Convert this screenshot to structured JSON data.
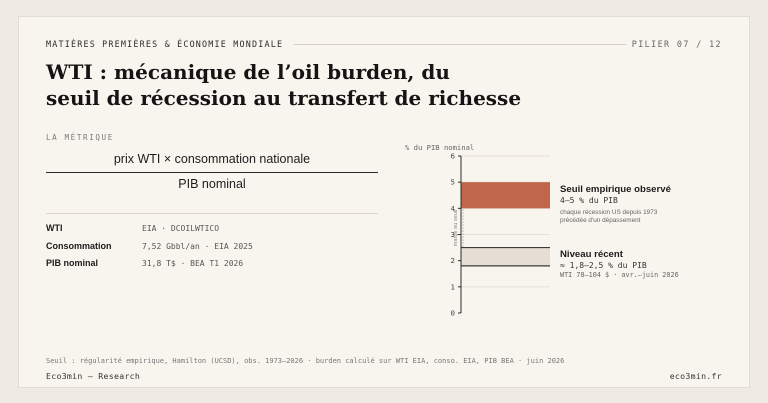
{
  "header": {
    "kicker": "MATIÈRES PREMIÈRES & ÉCONOMIE MONDIALE",
    "pillar": "PILIER 07 / 12"
  },
  "title": {
    "line1": "WTI : mécanique de l’oil burden, du",
    "line2": "seuil de récession au transfert de richesse"
  },
  "metric": {
    "label": "LA MÉTRIQUE",
    "numerator": "prix WTI × consommation nationale",
    "denominator": "PIB nominal"
  },
  "definitions": [
    {
      "term": "WTI",
      "source": "EIA · DCOILWTICO"
    },
    {
      "term": "Consommation",
      "source": "7,52 Gbbl/an · EIA 2025"
    },
    {
      "term": "PIB nominal",
      "source": "31,8 T$ · BEA T1 2026"
    }
  ],
  "chart_data": {
    "type": "bar",
    "ylabel": "% du PIB nominal",
    "ylim": [
      0,
      6
    ],
    "y_ticks": [
      "0",
      "1",
      "2",
      "3",
      "4",
      "5",
      "6"
    ],
    "margin_label": "marge au seuil",
    "bands": [
      {
        "name": "Seuil empirique observé",
        "from": 4,
        "to": 5,
        "value_label": "4–5 % du PIB",
        "note_line1": "chaque récession US depuis 1973",
        "note_line2": "précédée d'un dépassement",
        "color": "#c0664a"
      },
      {
        "name": "Niveau récent",
        "from": 1.8,
        "to": 2.5,
        "value_label": "≈ 1,8–2,5 % du PIB",
        "note_line1": "WTI 78–104 $ · avr.–juin 2026",
        "color": "#e4ded4"
      }
    ]
  },
  "footer": {
    "footnote": "Seuil : régularité empirique, Hamilton (UCSD), obs. 1973–2026 · burden calculé sur WTI EIA, conso. EIA, PIB BEA · juin 2026",
    "brand": "Eco3min — Research",
    "site": "eco3min.fr"
  }
}
